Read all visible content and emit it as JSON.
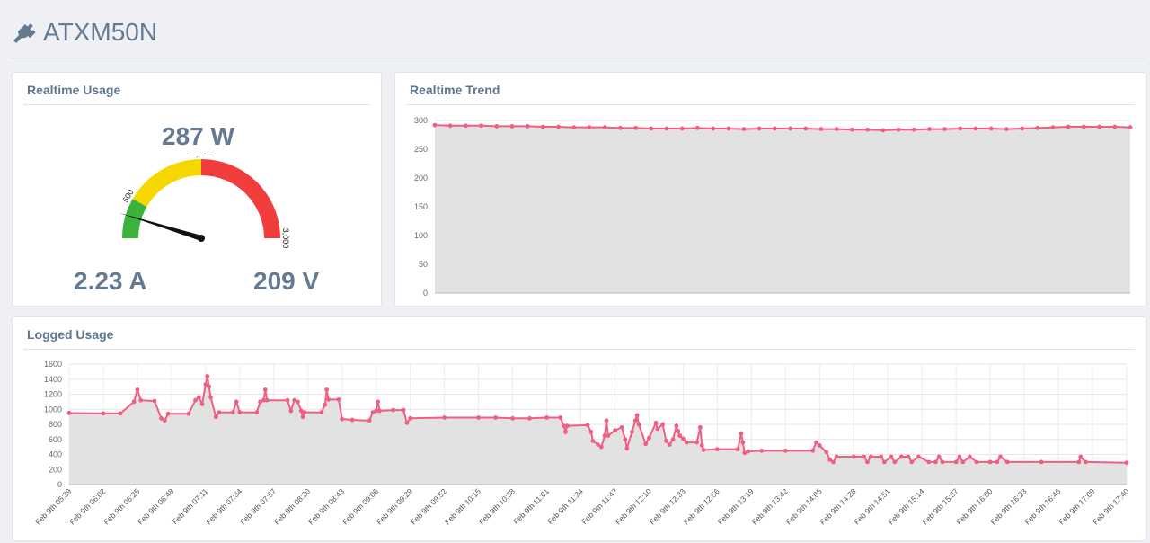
{
  "app": {
    "title": "ATXM50N",
    "icon": "plug-icon"
  },
  "realtime_usage": {
    "title": "Realtime Usage",
    "watts": "287 W",
    "amps": "2.23 A",
    "volts": "209 V",
    "gauge": {
      "value": 287,
      "min": 0,
      "max": 3000,
      "tick_labels": [
        "500",
        "1,500",
        "3,000"
      ],
      "bands": [
        {
          "from": 0,
          "to": 500,
          "color": "#3bb33b"
        },
        {
          "from": 500,
          "to": 1500,
          "color": "#f7d700"
        },
        {
          "from": 1500,
          "to": 3000,
          "color": "#f23d3d"
        }
      ]
    }
  },
  "realtime_trend": {
    "title": "Realtime Trend",
    "chart_data": {
      "type": "line",
      "ylim": [
        0,
        300
      ],
      "yticks": [
        0,
        50,
        100,
        150,
        200,
        250,
        300
      ],
      "color": "#ef5f82",
      "fill": "#e2e2e2",
      "grid": true,
      "values": [
        292,
        291,
        291,
        291,
        290,
        290,
        290,
        289,
        289,
        288,
        288,
        288,
        287,
        287,
        286,
        286,
        286,
        287,
        286,
        286,
        285,
        286,
        286,
        286,
        286,
        285,
        285,
        284,
        284,
        283,
        284,
        284,
        285,
        285,
        286,
        286,
        286,
        285,
        286,
        287,
        288,
        289,
        289,
        289,
        289,
        288
      ]
    }
  },
  "logged_usage": {
    "title": "Logged Usage",
    "chart_data": {
      "type": "line",
      "ylim": [
        0,
        1600
      ],
      "yticks": [
        0,
        200,
        400,
        600,
        800,
        1000,
        1200,
        1400,
        1600
      ],
      "color": "#ef5f82",
      "fill": "#e2e2e2",
      "grid": true,
      "x_labels": [
        "Feb 9th 05:39",
        "Feb 9th 06:02",
        "Feb 9th 06:25",
        "Feb 9th 06:48",
        "Feb 9th 07:11",
        "Feb 9th 07:34",
        "Feb 9th 07:57",
        "Feb 9th 08:20",
        "Feb 9th 08:43",
        "Feb 9th 09:06",
        "Feb 9th 09:29",
        "Feb 9th 09:52",
        "Feb 9th 10:15",
        "Feb 9th 10:38",
        "Feb 9th 11:01",
        "Feb 9th 11:24",
        "Feb 9th 11:47",
        "Feb 9th 12:10",
        "Feb 9th 12:33",
        "Feb 9th 12:56",
        "Feb 9th 13:19",
        "Feb 9th 13:42",
        "Feb 9th 14:05",
        "Feb 9th 14:28",
        "Feb 9th 14:51",
        "Feb 9th 15:14",
        "Feb 9th 15:37",
        "Feb 9th 16:00",
        "Feb 9th 16:23",
        "Feb 9th 16:46",
        "Feb 9th 17:09",
        "Feb 9th 17:40"
      ],
      "values": [
        [
          0,
          950
        ],
        [
          1,
          945
        ],
        [
          1.5,
          945
        ],
        [
          1.9,
          1100
        ],
        [
          2,
          1260
        ],
        [
          2.1,
          1120
        ],
        [
          2.5,
          1110
        ],
        [
          2.7,
          880
        ],
        [
          2.8,
          850
        ],
        [
          2.9,
          940
        ],
        [
          3.5,
          940
        ],
        [
          3.7,
          1120
        ],
        [
          3.8,
          1160
        ],
        [
          3.9,
          1070
        ],
        [
          4,
          1330
        ],
        [
          4.05,
          1440
        ],
        [
          4.1,
          1300
        ],
        [
          4.15,
          1160
        ],
        [
          4.3,
          900
        ],
        [
          4.4,
          960
        ],
        [
          4.8,
          960
        ],
        [
          4.9,
          1100
        ],
        [
          5,
          960
        ],
        [
          5.5,
          960
        ],
        [
          5.6,
          1100
        ],
        [
          5.7,
          1120
        ],
        [
          5.75,
          1260
        ],
        [
          5.8,
          1120
        ],
        [
          6.4,
          1120
        ],
        [
          6.5,
          980
        ],
        [
          6.6,
          1120
        ],
        [
          6.7,
          1100
        ],
        [
          6.8,
          980
        ],
        [
          6.85,
          900
        ],
        [
          6.9,
          960
        ],
        [
          7.4,
          960
        ],
        [
          7.5,
          1060
        ],
        [
          7.55,
          1260
        ],
        [
          7.6,
          1130
        ],
        [
          7.9,
          1130
        ],
        [
          8,
          870
        ],
        [
          8.3,
          860
        ],
        [
          8.8,
          850
        ],
        [
          8.9,
          960
        ],
        [
          9,
          980
        ],
        [
          9.05,
          1100
        ],
        [
          9.1,
          980
        ],
        [
          9.5,
          990
        ],
        [
          9.8,
          990
        ],
        [
          9.9,
          820
        ],
        [
          10,
          880
        ],
        [
          11,
          890
        ],
        [
          12,
          890
        ],
        [
          12.5,
          890
        ],
        [
          13,
          880
        ],
        [
          13.5,
          880
        ],
        [
          14,
          890
        ],
        [
          14.4,
          890
        ],
        [
          14.5,
          780
        ],
        [
          14.55,
          700
        ],
        [
          14.6,
          780
        ],
        [
          15.2,
          790
        ],
        [
          15.3,
          700
        ],
        [
          15.35,
          580
        ],
        [
          15.5,
          530
        ],
        [
          15.6,
          500
        ],
        [
          15.7,
          650
        ],
        [
          15.75,
          850
        ],
        [
          15.8,
          650
        ],
        [
          16,
          720
        ],
        [
          16.2,
          760
        ],
        [
          16.3,
          600
        ],
        [
          16.35,
          480
        ],
        [
          16.5,
          700
        ],
        [
          16.6,
          850
        ],
        [
          16.65,
          920
        ],
        [
          16.7,
          800
        ],
        [
          16.9,
          540
        ],
        [
          17,
          620
        ],
        [
          17.2,
          820
        ],
        [
          17.25,
          740
        ],
        [
          17.4,
          800
        ],
        [
          17.5,
          580
        ],
        [
          17.6,
          530
        ],
        [
          17.7,
          600
        ],
        [
          17.8,
          780
        ],
        [
          17.85,
          710
        ],
        [
          17.9,
          650
        ],
        [
          18,
          610
        ],
        [
          18.1,
          560
        ],
        [
          18.4,
          560
        ],
        [
          18.5,
          760
        ],
        [
          18.55,
          520
        ],
        [
          18.6,
          460
        ],
        [
          19,
          470
        ],
        [
          19.6,
          470
        ],
        [
          19.7,
          680
        ],
        [
          19.75,
          560
        ],
        [
          19.8,
          420
        ],
        [
          19.9,
          440
        ],
        [
          20.3,
          450
        ],
        [
          21,
          450
        ],
        [
          21.8,
          450
        ],
        [
          21.9,
          560
        ],
        [
          22,
          520
        ],
        [
          22.2,
          430
        ],
        [
          22.3,
          330
        ],
        [
          22.4,
          300
        ],
        [
          22.5,
          370
        ],
        [
          23,
          370
        ],
        [
          23.3,
          370
        ],
        [
          23.4,
          300
        ],
        [
          23.5,
          370
        ],
        [
          23.8,
          370
        ],
        [
          23.9,
          300
        ],
        [
          24.1,
          370
        ],
        [
          24.2,
          300
        ],
        [
          24.4,
          370
        ],
        [
          24.6,
          370
        ],
        [
          24.7,
          300
        ],
        [
          24.9,
          370
        ],
        [
          25.2,
          300
        ],
        [
          25.4,
          300
        ],
        [
          25.5,
          370
        ],
        [
          25.6,
          300
        ],
        [
          26,
          300
        ],
        [
          26.1,
          370
        ],
        [
          26.2,
          300
        ],
        [
          26.4,
          370
        ],
        [
          26.6,
          300
        ],
        [
          27,
          300
        ],
        [
          27.2,
          300
        ],
        [
          27.3,
          370
        ],
        [
          27.5,
          300
        ],
        [
          28.5,
          300
        ],
        [
          29.6,
          300
        ],
        [
          29.65,
          370
        ],
        [
          29.8,
          300
        ],
        [
          31,
          290
        ]
      ]
    }
  }
}
